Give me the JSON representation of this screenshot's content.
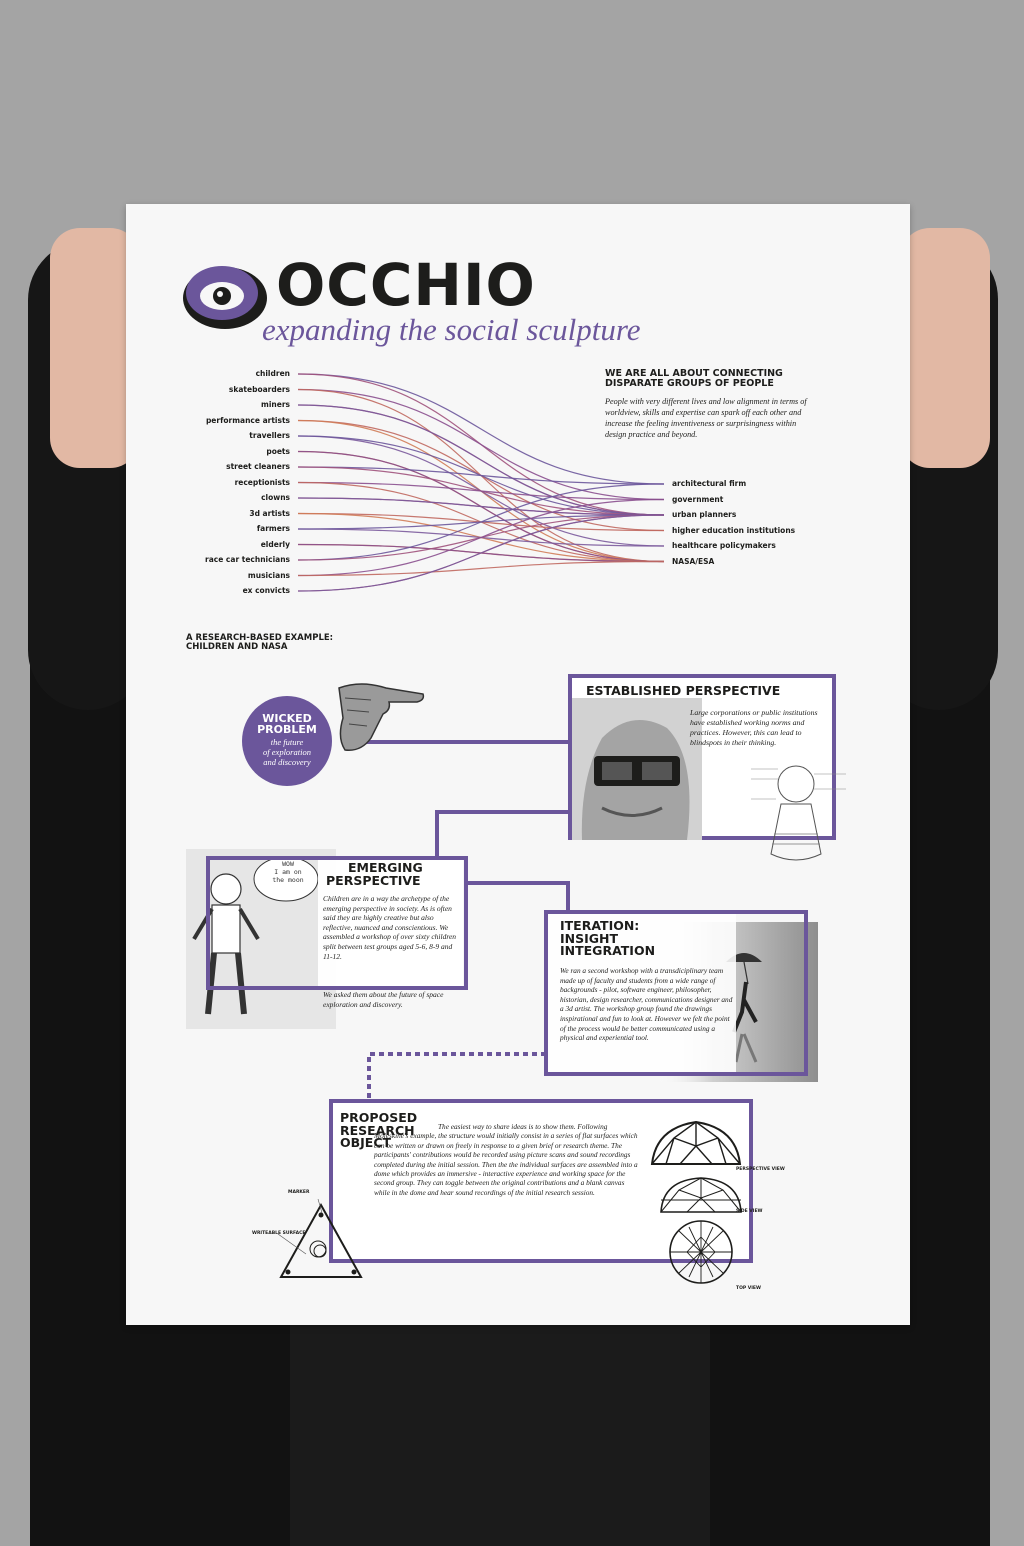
{
  "brand": {
    "name": "OCCHIO",
    "tagline": "expanding the social sculpture",
    "color": "#6b569b"
  },
  "connection": {
    "heading_line1": "WE ARE ALL ABOUT CONNECTING",
    "heading_line2": "DISPARATE GROUPS OF PEOPLE",
    "text": "People with very different lives and low alignment in terms of worldview, skills and expertise can spark off each other and increase the feeling inventiveness or surprisingness within design practice and beyond.",
    "left_groups": [
      "children",
      "skateboarders",
      "miners",
      "performance artists",
      "travellers",
      "poets",
      "street cleaners",
      "receptionists",
      "clowns",
      "3d artists",
      "farmers",
      "elderly",
      "race car technicians",
      "musicians",
      "ex convicts"
    ],
    "right_groups": [
      "architectural firm",
      "government",
      "urban planners",
      "higher education institutions",
      "healthcare policymakers",
      "NASA/ESA"
    ]
  },
  "example": {
    "heading_line1": "A RESEARCH-BASED EXAMPLE:",
    "heading_line2": "CHILDREN AND NASA"
  },
  "wicked": {
    "title_line1": "WICKED",
    "title_line2": "PROBLEM",
    "sub_line1": "the future",
    "sub_line2": "of exploration",
    "sub_line3": "and discovery"
  },
  "established": {
    "title": "ESTABLISHED PERSPECTIVE",
    "text": "Large corporations or public institutions have established working norms and practices. However, this can lead to blindspots in their thinking."
  },
  "emerging": {
    "title_line1": "EMERGING",
    "title_line2": "PERSPECTIVE",
    "text1": "Children are in a way the archetype of the emerging perspective in society. As is often said they are highly creative but also reflective, nuanced and conscientious. We assembled a workshop of over sixty children split between test groups aged 5-6, 8-9 and 11-12.",
    "text2": "We asked them about the future of space exploration and discovery.",
    "speech_line1": "WOW",
    "speech_line2": "I am on",
    "speech_line3": "the moon"
  },
  "iteration": {
    "title_line1": "ITERATION:",
    "title_line2": "INSIGHT",
    "title_line3": "INTEGRATION",
    "text": "We ran a second workshop with a transdiciplinary team made up of faculty and students from a wide range of backgrounds - pilot, software engineer, philosopher, historian, design researcher, communications designer and a 3d artist. The workshop group found the drawings inspirational and fun to look at. However we felt the point of the process would be better communicated using a physical and experiential tool."
  },
  "proposed": {
    "title_line1": "PROPOSED",
    "title_line2": "RESEARCH",
    "title_line3": "OBJECT",
    "text": "The easiest way to share ideas is to show them. Following Moleskine's example, the structure would initially consist in a series of flat surfaces which can be written or drawn on freely in response to a given brief or research theme. The participants' contributions would be recorded using picture scans and sound recordings completed during the initial session. Then the the individual surfaces are assembled into a dome which provides an immersive - interactive experience and working space for the second group. They can toggle between the original contributions and a blank canvas while in the dome and hear sound recordings of the initial research session.",
    "label_marker": "MARKER",
    "label_surface": "WRITEABLE SURFACE",
    "label_perspective": "PERSPECTIVE VIEW",
    "label_side": "SIDE VIEW",
    "label_top": "TOP VIEW"
  }
}
